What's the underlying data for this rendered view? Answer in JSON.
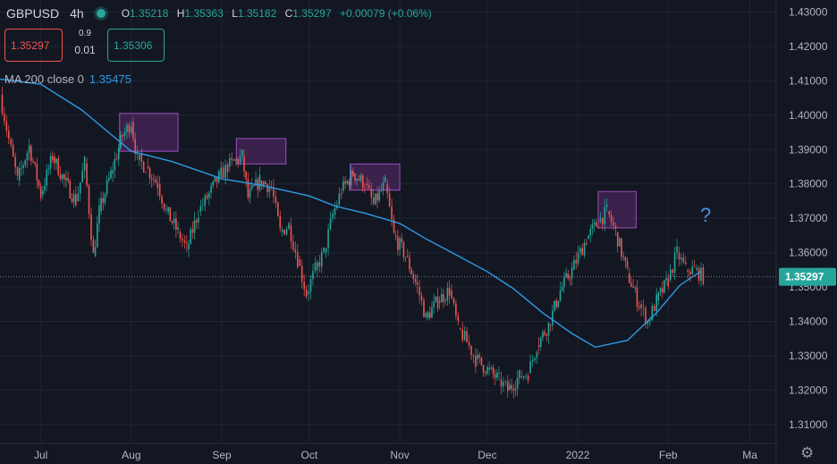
{
  "header": {
    "symbol": "GBPUSD",
    "timeframe": "4h",
    "ohlc": {
      "o_label": "O",
      "o": "1.35218",
      "h_label": "H",
      "h": "1.35363",
      "l_label": "L",
      "l": "1.35182",
      "c_label": "C",
      "c": "1.35297",
      "change": "+0.00079 (+0.06%)"
    }
  },
  "trade": {
    "sell_price": "1.35297",
    "buy_price": "1.35306",
    "spread_top": "0.9",
    "spread_bottom": "0.01"
  },
  "indicator": {
    "label": "MA 200 close 0",
    "value": "1.35475"
  },
  "annotation": {
    "question_mark": "?"
  },
  "colors": {
    "background": "#131722",
    "up": "#26a69a",
    "down": "#ef5350",
    "ma": "#2f9ae6",
    "highlight_fill": "#5a2a6d",
    "highlight_border": "#9c4fbf",
    "annotation": "#4a90e2"
  },
  "chart_data": {
    "type": "line",
    "title": "GBPUSD 4h",
    "xlabel": "",
    "ylabel": "",
    "ylim": [
      1.3045,
      1.4335
    ],
    "xlim": [
      "2021-06-17",
      "2022-03-10"
    ],
    "x_ticks": [
      {
        "label": "Jul",
        "date": "2021-07-01"
      },
      {
        "label": "Aug",
        "date": "2021-08-01"
      },
      {
        "label": "Sep",
        "date": "2021-09-01"
      },
      {
        "label": "Oct",
        "date": "2021-10-01"
      },
      {
        "label": "Nov",
        "date": "2021-11-01"
      },
      {
        "label": "Dec",
        "date": "2021-12-01"
      },
      {
        "label": "2022",
        "date": "2022-01-01"
      },
      {
        "label": "Feb",
        "date": "2022-02-01"
      },
      {
        "label": "Ma",
        "date": "2022-03-01"
      }
    ],
    "y_ticks": [
      "1.43000",
      "1.42000",
      "1.41000",
      "1.40000",
      "1.39000",
      "1.38000",
      "1.37000",
      "1.36000",
      "1.35000",
      "1.34000",
      "1.33000",
      "1.32000",
      "1.31000"
    ],
    "last_price_label": "1.35297",
    "last_price": 1.35297,
    "series": [
      {
        "name": "GBPUSD",
        "x": [
          "2021-06-17",
          "2021-06-20",
          "2021-06-23",
          "2021-06-27",
          "2021-07-01",
          "2021-07-05",
          "2021-07-09",
          "2021-07-13",
          "2021-07-16",
          "2021-07-19",
          "2021-07-21",
          "2021-07-25",
          "2021-07-29",
          "2021-08-01",
          "2021-08-03",
          "2021-08-06",
          "2021-08-10",
          "2021-08-13",
          "2021-08-17",
          "2021-08-20",
          "2021-08-24",
          "2021-08-27",
          "2021-08-31",
          "2021-09-03",
          "2021-09-08",
          "2021-09-10",
          "2021-09-14",
          "2021-09-18",
          "2021-09-21",
          "2021-09-24",
          "2021-09-27",
          "2021-09-30",
          "2021-10-03",
          "2021-10-06",
          "2021-10-09",
          "2021-10-12",
          "2021-10-16",
          "2021-10-20",
          "2021-10-23",
          "2021-10-27",
          "2021-10-30",
          "2021-11-03",
          "2021-11-07",
          "2021-11-10",
          "2021-11-14",
          "2021-11-18",
          "2021-11-21",
          "2021-11-24",
          "2021-11-27",
          "2021-12-01",
          "2021-12-05",
          "2021-12-08",
          "2021-12-12",
          "2021-12-15",
          "2021-12-18",
          "2021-12-22",
          "2021-12-26",
          "2021-12-30",
          "2022-01-04",
          "2022-01-08",
          "2022-01-11",
          "2022-01-14",
          "2022-01-18",
          "2022-01-22",
          "2022-01-25",
          "2022-01-28",
          "2022-02-01",
          "2022-02-04",
          "2022-02-07",
          "2022-02-10",
          "2022-02-13"
        ],
        "values": [
          1.406,
          1.393,
          1.381,
          1.391,
          1.377,
          1.388,
          1.381,
          1.375,
          1.386,
          1.359,
          1.372,
          1.383,
          1.394,
          1.398,
          1.387,
          1.385,
          1.38,
          1.372,
          1.366,
          1.361,
          1.372,
          1.376,
          1.382,
          1.385,
          1.388,
          1.376,
          1.381,
          1.379,
          1.366,
          1.368,
          1.358,
          1.348,
          1.355,
          1.36,
          1.371,
          1.378,
          1.383,
          1.38,
          1.374,
          1.38,
          1.365,
          1.359,
          1.35,
          1.341,
          1.346,
          1.349,
          1.338,
          1.334,
          1.329,
          1.326,
          1.323,
          1.32,
          1.324,
          1.325,
          1.333,
          1.339,
          1.349,
          1.355,
          1.364,
          1.369,
          1.372,
          1.366,
          1.354,
          1.345,
          1.34,
          1.346,
          1.352,
          1.36,
          1.355,
          1.355,
          1.353
        ]
      },
      {
        "name": "MA 200 close 0",
        "x": [
          "2021-06-17",
          "2021-07-01",
          "2021-07-15",
          "2021-08-01",
          "2021-08-15",
          "2021-09-01",
          "2021-09-15",
          "2021-10-01",
          "2021-10-10",
          "2021-10-20",
          "2021-11-01",
          "2021-11-10",
          "2021-11-20",
          "2021-12-01",
          "2021-12-10",
          "2021-12-20",
          "2021-12-30",
          "2022-01-07",
          "2022-01-18",
          "2022-01-28",
          "2022-02-05",
          "2022-02-12"
        ],
        "values": [
          1.4105,
          1.409,
          1.4015,
          1.3895,
          1.3865,
          1.3815,
          1.3795,
          1.3765,
          1.3735,
          1.3715,
          1.3685,
          1.364,
          1.3595,
          1.3545,
          1.3495,
          1.3425,
          1.3365,
          1.3325,
          1.3345,
          1.3425,
          1.3505,
          1.3545
        ]
      }
    ],
    "highlights": [
      {
        "x": [
          "2021-07-28",
          "2021-08-17"
        ],
        "y": [
          1.3895,
          1.4005
        ]
      },
      {
        "x": [
          "2021-09-06",
          "2021-09-23"
        ],
        "y": [
          1.3858,
          1.3932
        ]
      },
      {
        "x": [
          "2021-10-15",
          "2021-11-01"
        ],
        "y": [
          1.3782,
          1.3858
        ]
      },
      {
        "x": [
          "2022-01-08",
          "2022-01-21"
        ],
        "y": [
          1.3672,
          1.3778
        ]
      }
    ],
    "grid": true,
    "legend": "top-left"
  }
}
